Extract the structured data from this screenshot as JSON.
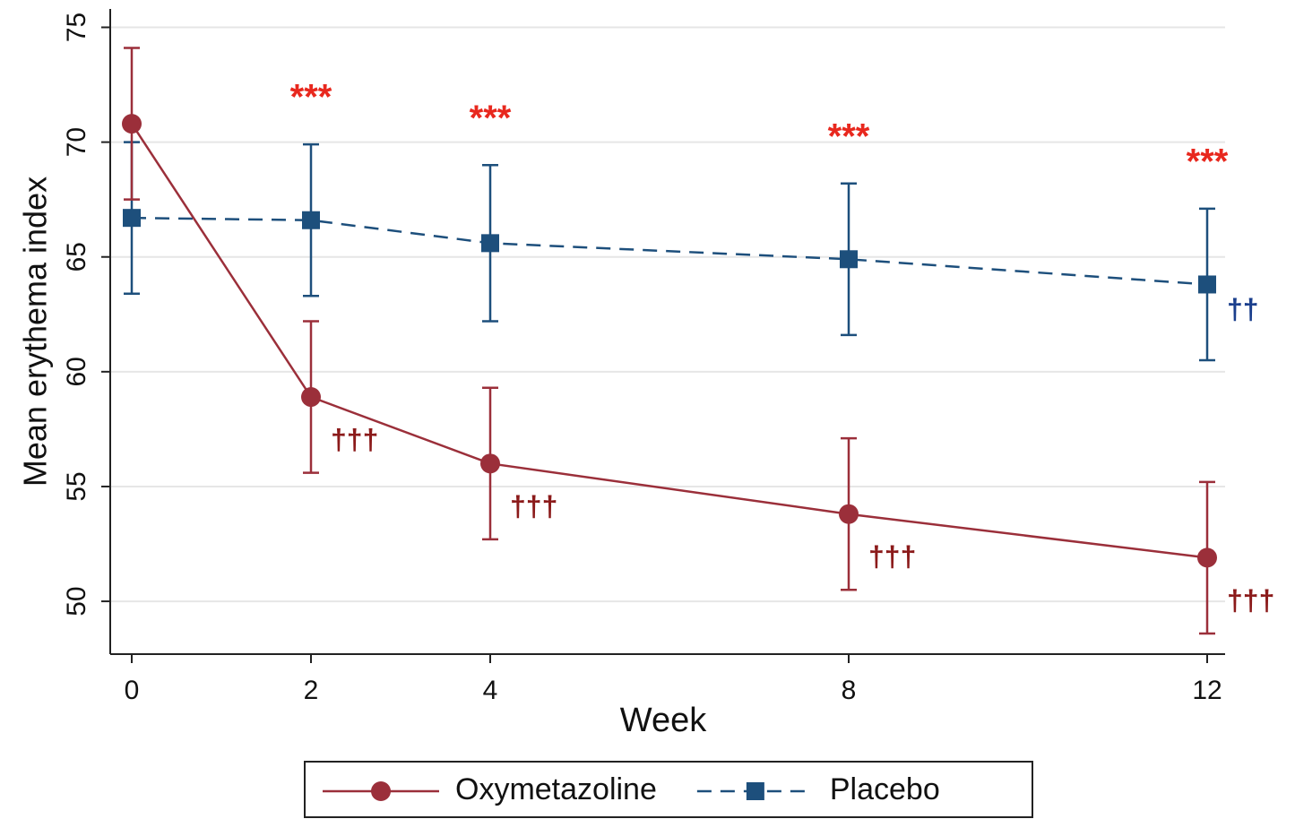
{
  "chart_data": {
    "type": "line",
    "x_label": "Week",
    "y_label": "Mean erythema index",
    "x": [
      0,
      2,
      4,
      8,
      12
    ],
    "xlim": [
      -0.24,
      12.2
    ],
    "xticks": [
      0,
      2,
      4,
      8,
      12
    ],
    "ylim": [
      47.7,
      75.8
    ],
    "yticks": [
      50,
      55,
      60,
      65,
      70,
      75
    ],
    "grid": true,
    "legend": "bottom",
    "series": [
      {
        "name": "Oxymetazoline",
        "color": "#9b2f3a",
        "line_style": "solid",
        "marker": "circle",
        "values": [
          70.8,
          58.9,
          56.0,
          53.8,
          51.9
        ],
        "errors": [
          3.3,
          3.3,
          3.3,
          3.3,
          3.3
        ],
        "point_labels": [
          null,
          "†††",
          "†††",
          "†††",
          "†††"
        ],
        "point_label_color": "#8b1a1a"
      },
      {
        "name": "Placebo",
        "color": "#1d4f7c",
        "line_style": "dashed",
        "marker": "square",
        "values": [
          66.7,
          66.6,
          65.6,
          64.9,
          63.8
        ],
        "errors": [
          3.3,
          3.3,
          3.4,
          3.3,
          3.3
        ],
        "point_labels": [
          null,
          null,
          null,
          null,
          "††"
        ],
        "point_label_color": "#1a3e8c"
      }
    ],
    "significance_labels": [
      null,
      "***",
      "***",
      "***",
      "***"
    ],
    "significance_color": "#e8281e"
  }
}
